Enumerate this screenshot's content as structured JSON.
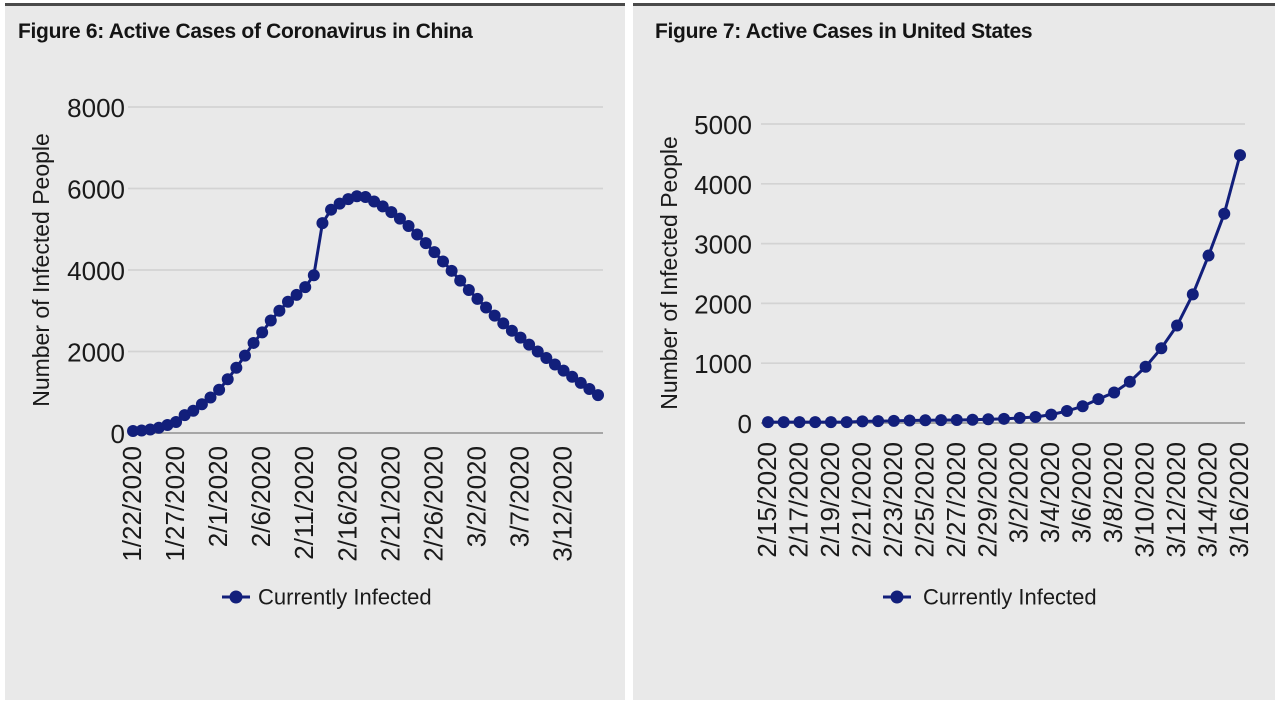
{
  "page": {
    "background": "#FFFFFF",
    "panel_background": "#E9E9E9",
    "top_rule_color": "#4A4A4A",
    "grid_color": "#D3D3D3",
    "axis_line_color": "#A6A6A6",
    "text_color": "#1A1A1A",
    "series_color": "#121F7B"
  },
  "chart_data": [
    {
      "type": "line",
      "title": "Figure 6: Active Cases of Coronavirus in China",
      "xlabel": "",
      "ylabel": "Number of Infected People",
      "legend_entries": [
        "Currently Infected"
      ],
      "legend_position": "bottom",
      "grid": true,
      "marker": "circle",
      "ylim": [
        0,
        8000
      ],
      "yticks": [
        0,
        2000,
        4000,
        6000,
        8000
      ],
      "xtick_interval_days": 5,
      "xtick_labels_shown": [
        "1/22/2020",
        "1/27/2020",
        "2/1/2020",
        "2/6/2020",
        "2/11/2020",
        "2/16/2020",
        "2/21/2020",
        "2/26/2020",
        "3/2/2020",
        "3/7/2020",
        "3/12/2020"
      ],
      "x": [
        "1/22/2020",
        "1/23/2020",
        "1/24/2020",
        "1/25/2020",
        "1/26/2020",
        "1/27/2020",
        "1/28/2020",
        "1/29/2020",
        "1/30/2020",
        "1/31/2020",
        "2/1/2020",
        "2/2/2020",
        "2/3/2020",
        "2/4/2020",
        "2/5/2020",
        "2/6/2020",
        "2/7/2020",
        "2/8/2020",
        "2/9/2020",
        "2/10/2020",
        "2/11/2020",
        "2/12/2020",
        "2/13/2020",
        "2/14/2020",
        "2/15/2020",
        "2/16/2020",
        "2/17/2020",
        "2/18/2020",
        "2/19/2020",
        "2/20/2020",
        "2/21/2020",
        "2/22/2020",
        "2/23/2020",
        "2/24/2020",
        "2/25/2020",
        "2/26/2020",
        "2/27/2020",
        "2/28/2020",
        "2/29/2020",
        "3/1/2020",
        "3/2/2020",
        "3/3/2020",
        "3/4/2020",
        "3/5/2020",
        "3/6/2020",
        "3/7/2020",
        "3/8/2020",
        "3/9/2020",
        "3/10/2020",
        "3/11/2020",
        "3/12/2020",
        "3/13/2020",
        "3/14/2020",
        "3/15/2020",
        "3/16/2020"
      ],
      "series": [
        {
          "name": "Currently Infected",
          "values": [
            50,
            62,
            87,
            130,
            197,
            270,
            440,
            545,
            705,
            870,
            1060,
            1320,
            1600,
            1900,
            2210,
            2470,
            2760,
            3000,
            3220,
            3390,
            3580,
            3870,
            5150,
            5480,
            5630,
            5740,
            5810,
            5790,
            5680,
            5560,
            5420,
            5260,
            5080,
            4870,
            4660,
            4440,
            4210,
            3980,
            3740,
            3510,
            3290,
            3080,
            2880,
            2690,
            2510,
            2340,
            2170,
            2000,
            1840,
            1680,
            1530,
            1380,
            1230,
            1080,
            930
          ]
        }
      ]
    },
    {
      "type": "line",
      "title": "Figure 7: Active Cases in United States",
      "xlabel": "",
      "ylabel": "Number of Infected People",
      "legend_entries": [
        "Currently Infected"
      ],
      "legend_position": "bottom",
      "grid": true,
      "marker": "circle",
      "ylim": [
        0,
        5000
      ],
      "yticks": [
        0,
        1000,
        2000,
        3000,
        4000,
        5000
      ],
      "xtick_interval_days": 2,
      "xtick_labels_shown": [
        "2/15/2020",
        "2/17/2020",
        "2/19/2020",
        "2/21/2020",
        "2/23/2020",
        "2/25/2020",
        "2/27/2020",
        "2/29/2020",
        "3/2/2020",
        "3/4/2020",
        "3/6/2020",
        "3/8/2020",
        "3/10/2020",
        "3/12/2020",
        "3/14/2020",
        "3/16/2020"
      ],
      "x": [
        "2/15/2020",
        "2/16/2020",
        "2/17/2020",
        "2/18/2020",
        "2/19/2020",
        "2/20/2020",
        "2/21/2020",
        "2/22/2020",
        "2/23/2020",
        "2/24/2020",
        "2/25/2020",
        "2/26/2020",
        "2/27/2020",
        "2/28/2020",
        "2/29/2020",
        "3/1/2020",
        "3/2/2020",
        "3/3/2020",
        "3/4/2020",
        "3/5/2020",
        "3/6/2020",
        "3/7/2020",
        "3/8/2020",
        "3/9/2020",
        "3/10/2020",
        "3/11/2020",
        "3/12/2020",
        "3/13/2020",
        "3/14/2020",
        "3/15/2020",
        "3/16/2020"
      ],
      "series": [
        {
          "name": "Currently Infected",
          "values": [
            15,
            15,
            15,
            15,
            15,
            15,
            28,
            32,
            35,
            42,
            45,
            48,
            50,
            55,
            62,
            70,
            85,
            100,
            140,
            200,
            280,
            400,
            510,
            690,
            940,
            1250,
            1630,
            2150,
            2800,
            3500,
            4480
          ]
        }
      ]
    }
  ]
}
